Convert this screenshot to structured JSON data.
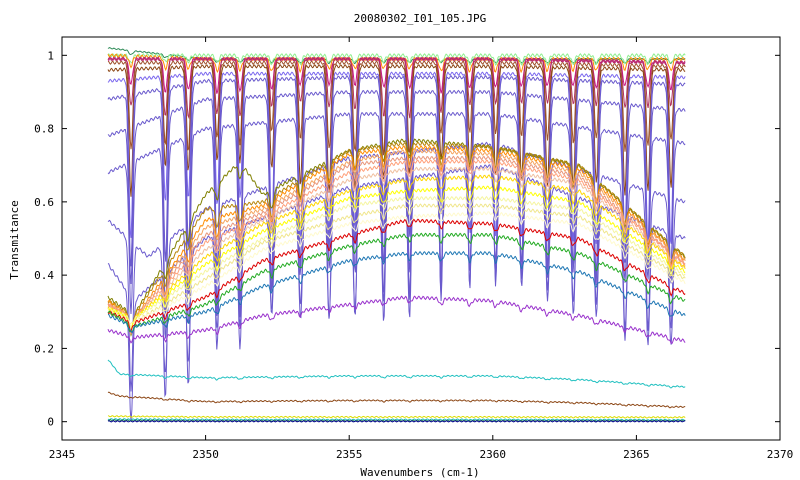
{
  "chart_data": {
    "type": "line",
    "title": "20080302_I01_105.JPG",
    "xlabel": "Wavenumbers (cm-1)",
    "ylabel": "Transmitance",
    "xlim": [
      2345,
      2370
    ],
    "ylim": [
      -0.05,
      1.05
    ],
    "x_ticks": [
      2345,
      2350,
      2355,
      2360,
      2365,
      2370
    ],
    "y_ticks": [
      0,
      0.2,
      0.4,
      0.6,
      0.8,
      1
    ],
    "x_tick_labels": [
      "2345",
      "2350",
      "2355",
      "2360",
      "2365",
      "2370"
    ],
    "y_tick_labels": [
      "0",
      "0.2",
      "0.4",
      "0.6",
      "0.8",
      "1"
    ],
    "x_range_of_data": [
      2346.6,
      2366.7
    ],
    "grid": false,
    "legend": "none",
    "line_peaks_cm1": [
      2347.4,
      2348.6,
      2349.4,
      2350.4,
      2351.2,
      2352.3,
      2353.3,
      2354.3,
      2355.2,
      2356.2,
      2357.1,
      2358.2,
      2359.2,
      2360.1,
      2361.0,
      2361.9,
      2362.8,
      2363.6,
      2364.6,
      2365.4,
      2366.2
    ],
    "series": [
      {
        "color": "#2e8b57",
        "values": [
          [
            2346.6,
            1.02
          ],
          [
            2350,
            0.99
          ],
          [
            2355,
            0.99
          ],
          [
            2360,
            0.99
          ],
          [
            2366.7,
            0.99
          ]
        ],
        "dip": 0.01
      },
      {
        "color": "#90ee90",
        "values": [
          [
            2346.6,
            1.0
          ],
          [
            2350,
            1.0
          ],
          [
            2355,
            1.0
          ],
          [
            2360,
            1.0
          ],
          [
            2366.7,
            1.0
          ]
        ],
        "dip": 0.02
      },
      {
        "color": "#ff8c00",
        "values": [
          [
            2346.6,
            1.0
          ],
          [
            2350,
            0.99
          ],
          [
            2355,
            0.99
          ],
          [
            2360,
            0.99
          ],
          [
            2366.7,
            0.99
          ]
        ],
        "dip": 0.03
      },
      {
        "color": "#c71585",
        "values": [
          [
            2346.6,
            0.99
          ],
          [
            2350,
            0.99
          ],
          [
            2355,
            0.99
          ],
          [
            2360,
            0.99
          ],
          [
            2366.7,
            0.98
          ]
        ],
        "dip": 0.08
      },
      {
        "color": "#b03060",
        "values": [
          [
            2346.6,
            0.99
          ],
          [
            2350,
            0.99
          ],
          [
            2355,
            0.99
          ],
          [
            2360,
            0.99
          ],
          [
            2366.7,
            0.98
          ]
        ],
        "dip": 0.14
      },
      {
        "color": "#a0522d",
        "values": [
          [
            2346.6,
            0.98
          ],
          [
            2350,
            0.98
          ],
          [
            2355,
            0.98
          ],
          [
            2360,
            0.98
          ],
          [
            2366.7,
            0.97
          ]
        ],
        "dip": 0.22
      },
      {
        "color": "#8b4513",
        "values": [
          [
            2346.6,
            0.96
          ],
          [
            2350,
            0.97
          ],
          [
            2355,
            0.97
          ],
          [
            2360,
            0.97
          ],
          [
            2366.7,
            0.96
          ]
        ],
        "dip": 0.3
      },
      {
        "color": "#7b68ee",
        "values": [
          [
            2346.6,
            0.93
          ],
          [
            2350,
            0.95
          ],
          [
            2355,
            0.95
          ],
          [
            2360,
            0.95
          ],
          [
            2366.7,
            0.94
          ]
        ],
        "dip": 0.4
      },
      {
        "color": "#6a5acd",
        "values": [
          [
            2346.6,
            0.88
          ],
          [
            2350,
            0.93
          ],
          [
            2355,
            0.94
          ],
          [
            2360,
            0.94
          ],
          [
            2366.7,
            0.92
          ]
        ],
        "dip": 0.5
      },
      {
        "color": "#6a5acd",
        "values": [
          [
            2346.6,
            0.78
          ],
          [
            2350,
            0.88
          ],
          [
            2355,
            0.9
          ],
          [
            2360,
            0.9
          ],
          [
            2366.7,
            0.85
          ]
        ],
        "dip": 0.5
      },
      {
        "color": "#6a5acd",
        "values": [
          [
            2346.6,
            0.68
          ],
          [
            2350,
            0.8
          ],
          [
            2355,
            0.84
          ],
          [
            2360,
            0.84
          ],
          [
            2366.7,
            0.76
          ]
        ],
        "dip": 0.46
      },
      {
        "color": "#6a5acd",
        "values": [
          [
            2346.6,
            0.55
          ],
          [
            2348,
            0.45
          ],
          [
            2350,
            0.58
          ],
          [
            2355,
            0.72
          ],
          [
            2360,
            0.76
          ],
          [
            2366.7,
            0.6
          ]
        ],
        "dip": 0.4
      },
      {
        "color": "#6a5acd",
        "values": [
          [
            2346.6,
            0.43
          ],
          [
            2347.5,
            0.33
          ],
          [
            2350,
            0.5
          ],
          [
            2355,
            0.64
          ],
          [
            2360,
            0.7
          ],
          [
            2366.7,
            0.5
          ]
        ],
        "dip": 0.3
      },
      {
        "color": "#808000",
        "values": [
          [
            2346.6,
            0.34
          ],
          [
            2347.5,
            0.29
          ],
          [
            2350,
            0.62
          ],
          [
            2351.2,
            0.71
          ],
          [
            2352,
            0.62
          ],
          [
            2355,
            0.74
          ],
          [
            2357,
            0.77
          ],
          [
            2360,
            0.75
          ],
          [
            2363,
            0.7
          ],
          [
            2366.7,
            0.45
          ]
        ],
        "dip": 0.05
      },
      {
        "color": "#b8860b",
        "values": [
          [
            2346.6,
            0.33
          ],
          [
            2347.5,
            0.29
          ],
          [
            2350,
            0.58
          ],
          [
            2352,
            0.6
          ],
          [
            2355,
            0.74
          ],
          [
            2357,
            0.76
          ],
          [
            2360,
            0.75
          ],
          [
            2363,
            0.7
          ],
          [
            2366.7,
            0.45
          ]
        ],
        "dip": 0.05
      },
      {
        "color": "#ff8c00",
        "values": [
          [
            2346.6,
            0.33
          ],
          [
            2347.5,
            0.28
          ],
          [
            2350,
            0.55
          ],
          [
            2352,
            0.59
          ],
          [
            2355,
            0.73
          ],
          [
            2357,
            0.75
          ],
          [
            2360,
            0.74
          ],
          [
            2363,
            0.69
          ],
          [
            2366.7,
            0.44
          ]
        ],
        "dip": 0.05
      },
      {
        "color": "#f4a460",
        "values": [
          [
            2346.6,
            0.32
          ],
          [
            2347.5,
            0.28
          ],
          [
            2350,
            0.53
          ],
          [
            2352,
            0.58
          ],
          [
            2355,
            0.71
          ],
          [
            2357,
            0.74
          ],
          [
            2360,
            0.73
          ],
          [
            2363,
            0.68
          ],
          [
            2366.7,
            0.44
          ]
        ],
        "dip": 0.04
      },
      {
        "color": "#e9967a",
        "values": [
          [
            2346.6,
            0.32
          ],
          [
            2347.5,
            0.28
          ],
          [
            2350,
            0.51
          ],
          [
            2352,
            0.57
          ],
          [
            2355,
            0.7
          ],
          [
            2357,
            0.72
          ],
          [
            2360,
            0.72
          ],
          [
            2363,
            0.67
          ],
          [
            2366.7,
            0.43
          ]
        ],
        "dip": 0.04
      },
      {
        "color": "#ffa07a",
        "values": [
          [
            2346.6,
            0.32
          ],
          [
            2347.5,
            0.28
          ],
          [
            2350,
            0.49
          ],
          [
            2352,
            0.56
          ],
          [
            2355,
            0.68
          ],
          [
            2357,
            0.71
          ],
          [
            2360,
            0.71
          ],
          [
            2363,
            0.66
          ],
          [
            2366.7,
            0.43
          ]
        ],
        "dip": 0.04
      },
      {
        "color": "#f0c0a0",
        "values": [
          [
            2346.6,
            0.31
          ],
          [
            2347.5,
            0.28
          ],
          [
            2350,
            0.47
          ],
          [
            2352,
            0.55
          ],
          [
            2355,
            0.66
          ],
          [
            2357,
            0.69
          ],
          [
            2360,
            0.69
          ],
          [
            2363,
            0.65
          ],
          [
            2366.7,
            0.42
          ]
        ],
        "dip": 0.03
      },
      {
        "color": "#ffd700",
        "values": [
          [
            2346.6,
            0.31
          ],
          [
            2347.5,
            0.28
          ],
          [
            2350,
            0.45
          ],
          [
            2352,
            0.54
          ],
          [
            2355,
            0.63
          ],
          [
            2357,
            0.66
          ],
          [
            2360,
            0.67
          ],
          [
            2363,
            0.63
          ],
          [
            2366.7,
            0.42
          ]
        ],
        "dip": 0.03
      },
      {
        "color": "#ffff00",
        "values": [
          [
            2346.6,
            0.31
          ],
          [
            2347.5,
            0.28
          ],
          [
            2350,
            0.43
          ],
          [
            2352,
            0.52
          ],
          [
            2355,
            0.61
          ],
          [
            2357,
            0.63
          ],
          [
            2360,
            0.64
          ],
          [
            2363,
            0.6
          ],
          [
            2366.7,
            0.41
          ]
        ],
        "dip": 0.03
      },
      {
        "color": "#f5f5a0",
        "values": [
          [
            2346.6,
            0.31
          ],
          [
            2347.5,
            0.28
          ],
          [
            2350,
            0.41
          ],
          [
            2352,
            0.5
          ],
          [
            2355,
            0.59
          ],
          [
            2357,
            0.61
          ],
          [
            2360,
            0.61
          ],
          [
            2363,
            0.58
          ],
          [
            2366.7,
            0.4
          ]
        ],
        "dip": 0.02
      },
      {
        "color": "#f0e68c",
        "values": [
          [
            2346.6,
            0.3
          ],
          [
            2347.5,
            0.27
          ],
          [
            2350,
            0.39
          ],
          [
            2352,
            0.49
          ],
          [
            2355,
            0.56
          ],
          [
            2357,
            0.59
          ],
          [
            2360,
            0.59
          ],
          [
            2363,
            0.56
          ],
          [
            2366.7,
            0.39
          ]
        ],
        "dip": 0.02
      },
      {
        "color": "#fffacd",
        "values": [
          [
            2346.6,
            0.3
          ],
          [
            2347.5,
            0.27
          ],
          [
            2350,
            0.37
          ],
          [
            2352,
            0.47
          ],
          [
            2355,
            0.54
          ],
          [
            2357,
            0.56
          ],
          [
            2360,
            0.57
          ],
          [
            2363,
            0.54
          ],
          [
            2366.7,
            0.38
          ]
        ],
        "dip": 0.02
      },
      {
        "color": "#dd0000",
        "values": [
          [
            2346.6,
            0.3
          ],
          [
            2347.5,
            0.27
          ],
          [
            2350,
            0.34
          ],
          [
            2352,
            0.44
          ],
          [
            2355,
            0.51
          ],
          [
            2357,
            0.55
          ],
          [
            2360,
            0.54
          ],
          [
            2363,
            0.5
          ],
          [
            2366.7,
            0.35
          ]
        ],
        "dip": 0.02
      },
      {
        "color": "#22aa22",
        "values": [
          [
            2346.6,
            0.3
          ],
          [
            2347.5,
            0.26
          ],
          [
            2350,
            0.32
          ],
          [
            2352,
            0.41
          ],
          [
            2355,
            0.48
          ],
          [
            2357,
            0.51
          ],
          [
            2360,
            0.51
          ],
          [
            2363,
            0.46
          ],
          [
            2366.7,
            0.33
          ]
        ],
        "dip": 0.02
      },
      {
        "color": "#1f77b4",
        "values": [
          [
            2346.6,
            0.29
          ],
          [
            2347.5,
            0.26
          ],
          [
            2350,
            0.3
          ],
          [
            2352,
            0.37
          ],
          [
            2355,
            0.44
          ],
          [
            2357,
            0.46
          ],
          [
            2360,
            0.46
          ],
          [
            2363,
            0.41
          ],
          [
            2366.7,
            0.29
          ]
        ],
        "dip": 0.02
      },
      {
        "color": "#9932cc",
        "values": [
          [
            2346.6,
            0.25
          ],
          [
            2347.5,
            0.23
          ],
          [
            2350,
            0.25
          ],
          [
            2352,
            0.29
          ],
          [
            2355,
            0.32
          ],
          [
            2357,
            0.34
          ],
          [
            2360,
            0.33
          ],
          [
            2363,
            0.29
          ],
          [
            2366.7,
            0.22
          ]
        ],
        "dip": 0.015
      },
      {
        "color": "#20c0c0",
        "values": [
          [
            2346.6,
            0.17
          ],
          [
            2347,
            0.13
          ],
          [
            2350,
            0.12
          ],
          [
            2355,
            0.125
          ],
          [
            2360,
            0.125
          ],
          [
            2363,
            0.115
          ],
          [
            2366.7,
            0.095
          ]
        ],
        "dip": 0.005
      },
      {
        "color": "#8b4513",
        "values": [
          [
            2346.6,
            0.08
          ],
          [
            2347,
            0.07
          ],
          [
            2350,
            0.055
          ],
          [
            2355,
            0.058
          ],
          [
            2360,
            0.058
          ],
          [
            2363,
            0.052
          ],
          [
            2366.7,
            0.04
          ]
        ],
        "dip": 0.003
      },
      {
        "color": "#dddd00",
        "values": [
          [
            2346.6,
            0.015
          ],
          [
            2350,
            0.013
          ],
          [
            2355,
            0.013
          ],
          [
            2360,
            0.013
          ],
          [
            2366.7,
            0.012
          ]
        ],
        "dip": 0.001
      },
      {
        "color": "#20c0c0",
        "values": [
          [
            2346.6,
            0.007
          ],
          [
            2350,
            0.006
          ],
          [
            2355,
            0.006
          ],
          [
            2360,
            0.006
          ],
          [
            2366.7,
            0.005
          ]
        ],
        "dip": 0.001
      },
      {
        "color": "#2e8b57",
        "values": [
          [
            2346.6,
            0.004
          ],
          [
            2350,
            0.003
          ],
          [
            2355,
            0.003
          ],
          [
            2360,
            0.003
          ],
          [
            2366.7,
            0.003
          ]
        ],
        "dip": 0.001
      },
      {
        "color": "#00008b",
        "values": [
          [
            2346.6,
            0.001
          ],
          [
            2350,
            0.001
          ],
          [
            2355,
            0.001
          ],
          [
            2360,
            0.001
          ],
          [
            2366.7,
            0.001
          ]
        ],
        "dip": 0.0005
      }
    ]
  }
}
